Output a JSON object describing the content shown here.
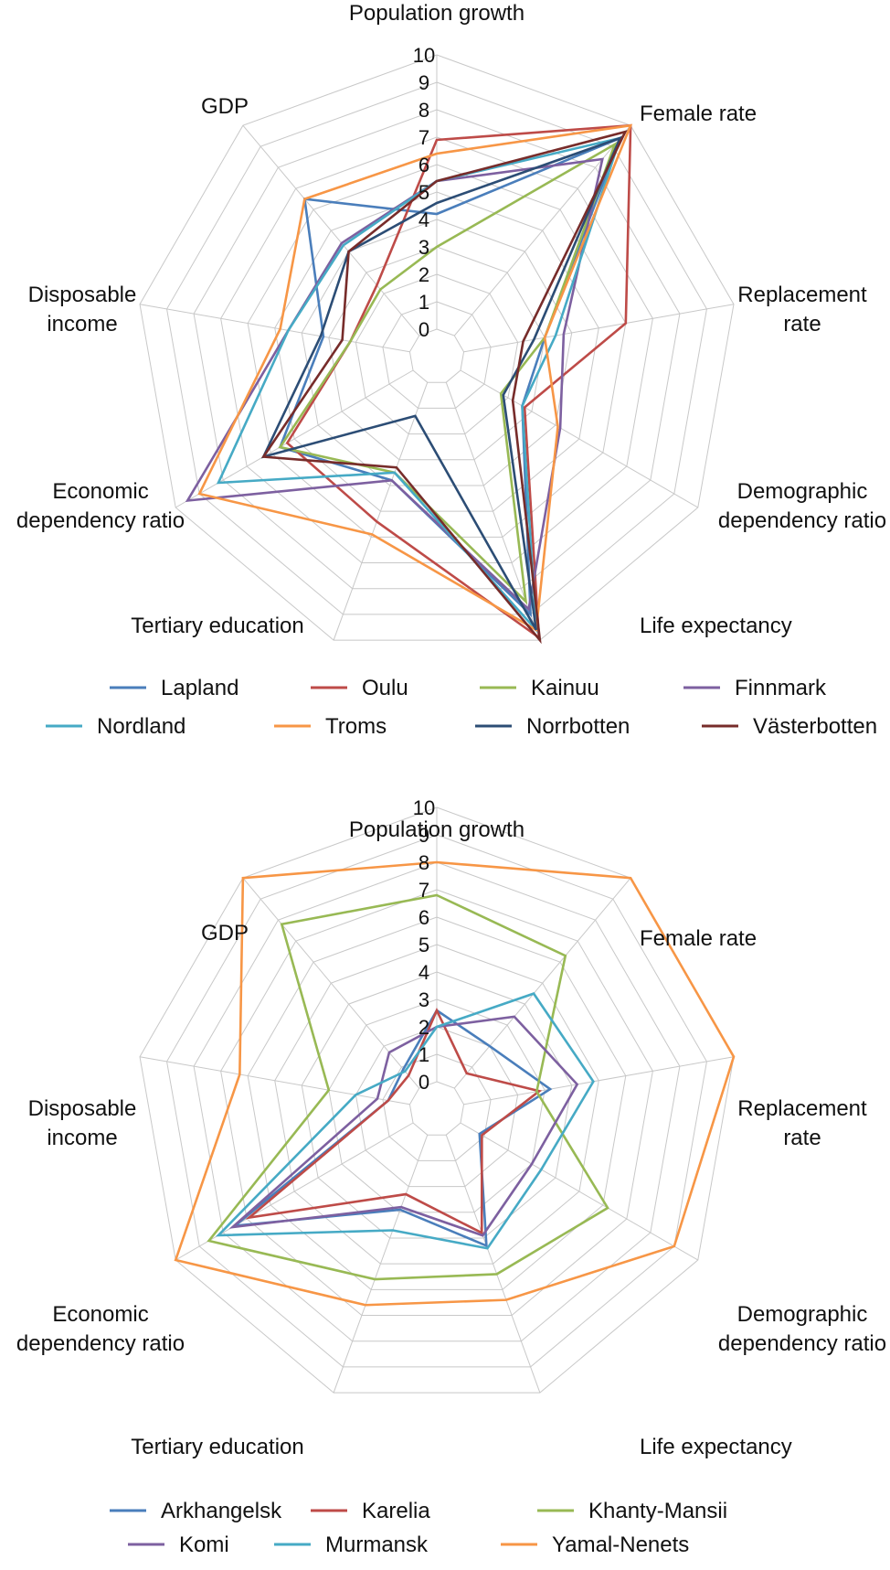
{
  "chart_data": [
    {
      "type": "radar",
      "title": "",
      "axes": [
        "Population growth",
        "Female rate",
        "Replacement rate",
        "Demographic dependency ratio",
        "Life expectancy",
        "Tertiary education",
        "Economic dependency ratio",
        "Disposable income",
        "GDP"
      ],
      "axis_label_lines": [
        [
          "Population growth"
        ],
        [
          "Female rate"
        ],
        [
          "Replacement",
          "rate"
        ],
        [
          "Demographic",
          "dependency ratio"
        ],
        [
          "Life expectancy"
        ],
        [
          "Tertiary education"
        ],
        [
          "Economic",
          "dependency ratio"
        ],
        [
          "Disposable",
          "income"
        ],
        [
          "GDP"
        ]
      ],
      "rlim": [
        0,
        10
      ],
      "ticks": [
        "0",
        "1",
        "2",
        "3",
        "4",
        "5",
        "6",
        "7",
        "8",
        "9",
        "10"
      ],
      "grid": true,
      "legend_position": "bottom",
      "series": [
        {
          "name": "Lapland",
          "color": "#4a7ebb",
          "values": [
            4.2,
            9.4,
            3.0,
            2.6,
            9.0,
            3.8,
            5.6,
            3.2,
            6.5
          ]
        },
        {
          "name": "Oulu",
          "color": "#be4b48",
          "values": [
            6.9,
            10.0,
            6.0,
            2.7,
            9.9,
            5.4,
            5.3,
            2.2,
            2.4
          ]
        },
        {
          "name": "Kainuu",
          "color": "#98b954",
          "values": [
            3.0,
            9.1,
            3.0,
            1.7,
            8.5,
            3.5,
            5.6,
            2.2,
            2.2
          ]
        },
        {
          "name": "Finnmark",
          "color": "#7d60a0",
          "values": [
            5.4,
            8.4,
            3.7,
            4.2,
            8.8,
            3.8,
            9.5,
            4.5,
            4.4
          ]
        },
        {
          "name": "Nordland",
          "color": "#46aac5",
          "values": [
            5.4,
            9.4,
            3.4,
            2.6,
            9.6,
            3.5,
            8.2,
            4.5,
            4.3
          ]
        },
        {
          "name": "Troms",
          "color": "#f79646",
          "values": [
            6.4,
            10.0,
            3.0,
            4.1,
            9.6,
            5.9,
            9.0,
            4.8,
            6.5
          ]
        },
        {
          "name": "Norrbotten",
          "color": "#2c4d75",
          "values": [
            4.6,
            9.4,
            2.6,
            1.8,
            9.6,
            1.3,
            6.3,
            3.3,
            4.0
          ]
        },
        {
          "name": "Västerbotten",
          "color": "#772c2a",
          "values": [
            5.4,
            9.7,
            2.2,
            2.2,
            10.0,
            3.3,
            6.3,
            2.5,
            4.0
          ]
        }
      ]
    },
    {
      "type": "radar",
      "title": "",
      "axes": [
        "Population growth",
        "Female rate",
        "Replacement rate",
        "Demographic dependency ratio",
        "Life expectancy",
        "Tertiary education",
        "Economic dependency ratio",
        "Disposable income",
        "GDP"
      ],
      "axis_label_lines": [
        [
          "Population growth"
        ],
        [
          "Female rate"
        ],
        [
          "Replacement",
          "rate"
        ],
        [
          "Demographic",
          "dependency ratio"
        ],
        [
          "Life expectancy"
        ],
        [
          "Tertiary education"
        ],
        [
          "Economic",
          "dependency ratio"
        ],
        [
          "Disposable",
          "income"
        ],
        [
          "GDP"
        ]
      ],
      "rlim": [
        0,
        10
      ],
      "ticks": [
        "0",
        "1",
        "2",
        "3",
        "4",
        "5",
        "6",
        "7",
        "8",
        "9",
        "10"
      ],
      "grid": true,
      "legend_position": "bottom",
      "series": [
        {
          "name": "Arkhangelsk",
          "color": "#4a7ebb",
          "values": [
            2.6,
            2.0,
            3.2,
            0.8,
            4.3,
            2.9,
            7.5,
            0.8,
            0.9
          ]
        },
        {
          "name": "Karelia",
          "color": "#be4b48",
          "values": [
            2.6,
            0.7,
            2.8,
            0.9,
            3.8,
            2.3,
            6.9,
            0.8,
            0.6
          ]
        },
        {
          "name": "Khanty-Mansii",
          "color": "#98b954",
          "values": [
            6.8,
            6.3,
            2.7,
            6.2,
            5.4,
            5.6,
            8.6,
            3.0,
            7.8
          ]
        },
        {
          "name": "Komi",
          "color": "#7d60a0",
          "values": [
            2.0,
            3.4,
            4.2,
            3.0,
            3.9,
            2.8,
            7.6,
            1.2,
            1.7
          ]
        },
        {
          "name": "Murmansk",
          "color": "#46aac5",
          "values": [
            2.0,
            4.5,
            4.8,
            3.4,
            4.4,
            3.7,
            8.2,
            2.0,
            0.8
          ]
        },
        {
          "name": "Yamal-Nenets",
          "color": "#f79646",
          "values": [
            8.0,
            10.0,
            10.0,
            9.0,
            6.4,
            6.6,
            10.0,
            6.3,
            10.0
          ]
        }
      ]
    }
  ]
}
